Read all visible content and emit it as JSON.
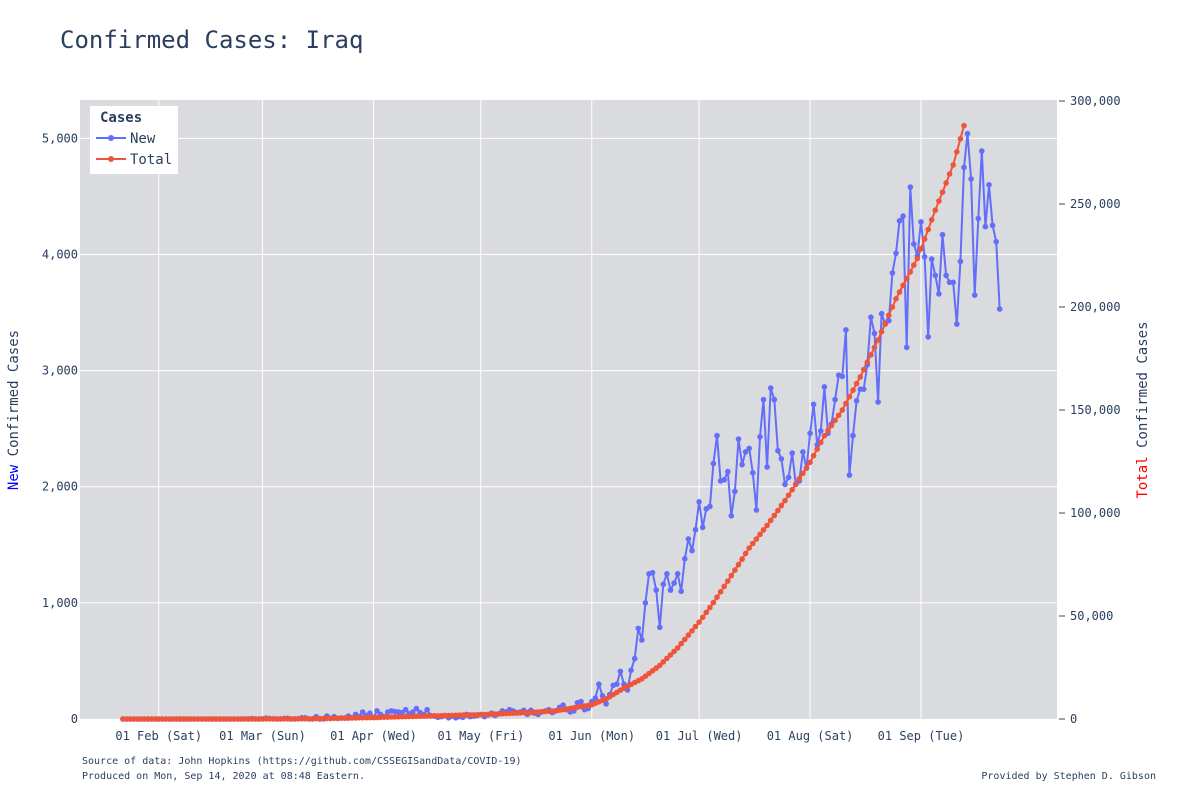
{
  "title": "Confirmed Cases: Iraq",
  "footer": {
    "source": "Source of data: John Hopkins (https://github.com/CSSEGISandData/COVID-19)",
    "produced": "Produced on Mon, Sep 14, 2020 at 08:48 Eastern.",
    "provided": "Provided by Stephen D. Gibson"
  },
  "colors": {
    "new": "#636efa",
    "total": "#ef553b",
    "plot_bg": "#dadbde",
    "grid": "#ffffff",
    "text": "#2a3f5f",
    "new_word": "#0000ff",
    "total_word": "#ff0000"
  },
  "chart_data": {
    "type": "line",
    "legend": {
      "title": "Cases",
      "placement": "top-left",
      "items": [
        "New",
        "Total"
      ]
    },
    "x_axis": {
      "type": "date",
      "range": [
        "2020-01-10",
        "2020-10-09"
      ],
      "ticks": [
        {
          "date": "2020-02-01",
          "label": "01 Feb (Sat)"
        },
        {
          "date": "2020-03-01",
          "label": "01 Mar (Sun)"
        },
        {
          "date": "2020-04-01",
          "label": "01 Apr (Wed)"
        },
        {
          "date": "2020-05-01",
          "label": "01 May (Fri)"
        },
        {
          "date": "2020-06-01",
          "label": "01 Jun (Mon)"
        },
        {
          "date": "2020-07-01",
          "label": "01 Jul (Wed)"
        },
        {
          "date": "2020-08-01",
          "label": "01 Aug (Sat)"
        },
        {
          "date": "2020-09-01",
          "label": "01 Sep (Tue)"
        }
      ]
    },
    "y_left": {
      "title_prefix": "New",
      "title_rest": " Confirmed Cases",
      "range": [
        0,
        5330
      ],
      "ticks": [
        0,
        1000,
        2000,
        3000,
        4000,
        5000
      ],
      "tick_labels": [
        "0",
        "1,000",
        "2,000",
        "3,000",
        "4,000",
        "5,000"
      ]
    },
    "y_right": {
      "title_prefix": "Total",
      "title_rest": " Confirmed Cases",
      "range": [
        0,
        300500
      ],
      "ticks": [
        0,
        50000,
        100000,
        150000,
        200000,
        250000,
        300000
      ],
      "tick_labels": [
        "0",
        "50,000",
        "100,000",
        "150,000",
        "200,000",
        "250,000",
        "300,000"
      ]
    },
    "start_date": "2020-01-22",
    "series": [
      {
        "name": "New",
        "axis": "left",
        "values": [
          0,
          0,
          0,
          0,
          0,
          0,
          0,
          0,
          0,
          0,
          0,
          0,
          0,
          0,
          0,
          0,
          0,
          0,
          0,
          0,
          0,
          0,
          0,
          0,
          0,
          0,
          0,
          0,
          0,
          0,
          0,
          0,
          0,
          0,
          1,
          0,
          4,
          1,
          0,
          2,
          8,
          4,
          2,
          0,
          0,
          5,
          6,
          0,
          0,
          2,
          10,
          10,
          0,
          0,
          20,
          0,
          0,
          25,
          5,
          20,
          5,
          10,
          8,
          25,
          10,
          40,
          20,
          60,
          30,
          50,
          15,
          70,
          40,
          20,
          60,
          70,
          65,
          60,
          55,
          80,
          45,
          60,
          90,
          55,
          40,
          80,
          30,
          25,
          15,
          20,
          30,
          10,
          25,
          10,
          20,
          15,
          40,
          20,
          25,
          30,
          40,
          20,
          35,
          50,
          30,
          45,
          70,
          60,
          80,
          70,
          55,
          60,
          75,
          40,
          75,
          50,
          40,
          60,
          70,
          80,
          55,
          70,
          100,
          120,
          80,
          60,
          70,
          140,
          150,
          80,
          90,
          150,
          180,
          300,
          200,
          130,
          210,
          290,
          300,
          410,
          300,
          250,
          420,
          520,
          780,
          680,
          1000,
          1250,
          1260,
          1110,
          790,
          1160,
          1250,
          1110,
          1170,
          1250,
          1100,
          1380,
          1550,
          1450,
          1630,
          1870,
          1650,
          1810,
          1830,
          2200,
          2440,
          2050,
          2060,
          2130,
          1750,
          1960,
          2410,
          2190,
          2300,
          2330,
          2120,
          1800,
          2430,
          2750,
          2170,
          2850,
          2750,
          2310,
          2240,
          2020,
          2080,
          2290,
          2020,
          2050,
          2300,
          2160,
          2460,
          2710,
          2360,
          2480,
          2860,
          2460,
          2540,
          2750,
          2960,
          2950,
          3350,
          2100,
          2440,
          2740,
          2840,
          2840,
          3050,
          3460,
          3320,
          2730,
          3490,
          3400,
          3430,
          3840,
          4010,
          4290,
          4330,
          3200,
          4580,
          4090,
          3990,
          4280,
          3980,
          3290,
          3960,
          3820,
          3660,
          4170,
          3820,
          3760,
          3760,
          3400,
          3940,
          4750,
          5040,
          4650,
          3650,
          4310,
          4890,
          4240,
          4600,
          4250,
          4110,
          3530
        ]
      },
      {
        "name": "Total",
        "axis": "right",
        "anchors": [
          [
            "2020-01-22",
            0
          ],
          [
            "2020-02-24",
            1
          ],
          [
            "2020-03-01",
            20
          ],
          [
            "2020-03-15",
            110
          ],
          [
            "2020-04-01",
            700
          ],
          [
            "2020-04-15",
            1400
          ],
          [
            "2020-05-01",
            2100
          ],
          [
            "2020-05-15",
            3200
          ],
          [
            "2020-05-22",
            4000
          ],
          [
            "2020-06-01",
            6900
          ],
          [
            "2020-06-05",
            9800
          ],
          [
            "2020-06-10",
            15000
          ],
          [
            "2020-06-15",
            19500
          ],
          [
            "2020-06-20",
            26000
          ],
          [
            "2020-06-25",
            34500
          ],
          [
            "2020-07-01",
            47000
          ],
          [
            "2020-07-05",
            56500
          ],
          [
            "2020-07-10",
            69600
          ],
          [
            "2020-07-15",
            83000
          ],
          [
            "2020-07-20",
            94000
          ],
          [
            "2020-07-25",
            106000
          ],
          [
            "2020-08-01",
            124600
          ],
          [
            "2020-08-05",
            137500
          ],
          [
            "2020-08-10",
            150000
          ],
          [
            "2020-08-15",
            166000
          ],
          [
            "2020-08-20",
            184000
          ],
          [
            "2020-08-25",
            204000
          ],
          [
            "2020-08-31",
            223600
          ],
          [
            "2020-09-05",
            247000
          ],
          [
            "2020-09-10",
            269000
          ],
          [
            "2020-09-13",
            288000
          ]
        ]
      }
    ]
  }
}
